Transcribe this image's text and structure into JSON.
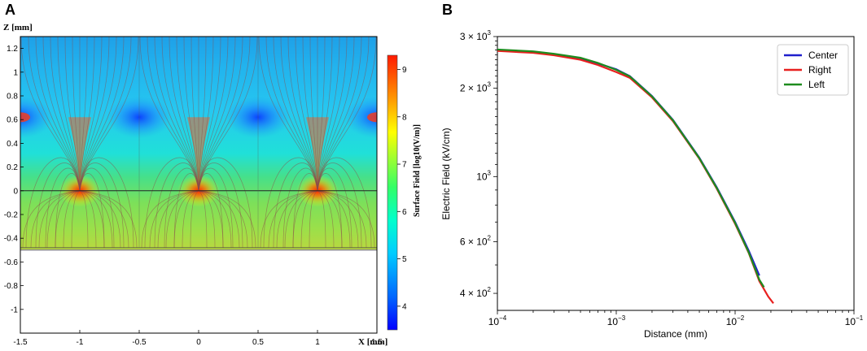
{
  "panels": {
    "a": {
      "label": "A",
      "title": "",
      "z_label": "Z [mm]",
      "x_label": "X [mm]",
      "x_ticks": [
        "-1.5",
        "-1",
        "-0.5",
        "0",
        "0.5",
        "1",
        "1.5"
      ],
      "z_ticks": [
        "1.2",
        "1",
        "0.8",
        "0.6",
        "0.4",
        "0.2",
        "0",
        "-0.2",
        "-0.4",
        "-0.6",
        "-0.8",
        "-1"
      ],
      "colorbar_label": "Surface Field [log10(V/m)]",
      "colorbar_ticks": [
        "4",
        "5",
        "6",
        "7",
        "8",
        "9"
      ]
    },
    "b": {
      "label": "B",
      "x_tick_labels": [
        {
          "base": "10",
          "exp": "−4"
        },
        {
          "base": "10",
          "exp": "−3"
        },
        {
          "base": "10",
          "exp": "−2"
        },
        {
          "base": "10",
          "exp": "−1"
        }
      ],
      "y_tick_labels": [
        {
          "base": "4 × 10",
          "exp": "2"
        },
        {
          "base": "6 × 10",
          "exp": "2"
        },
        {
          "base": "10",
          "exp": "3"
        },
        {
          "base": "2 × 10",
          "exp": "3"
        },
        {
          "base": "3 × 10",
          "exp": "3"
        }
      ]
    }
  },
  "chart_data": [
    {
      "type": "heatmap",
      "title": "",
      "xlabel": "X [mm]",
      "ylabel": "Z [mm]",
      "xlim": [
        -1.5,
        1.5
      ],
      "ylim": [
        -1.2,
        1.3
      ],
      "colorbar": {
        "label": "Surface Field [log10(V/m)]",
        "range": [
          3.5,
          9.3
        ],
        "ticks": [
          4,
          5,
          6,
          7,
          8,
          9
        ]
      },
      "point_sources_x": [
        -1,
        0,
        1
      ],
      "source_z": 0,
      "field_region_z": [
        -0.48,
        1.3
      ],
      "empty_region_z": [
        -1.2,
        -0.5
      ]
    },
    {
      "type": "line",
      "title": "",
      "xlabel": "Distance (mm)",
      "ylabel": "Electric Field (kV/cm)",
      "xscale": "log",
      "yscale": "log",
      "xlim": [
        0.0001,
        0.1
      ],
      "ylim": [
        350,
        3000
      ],
      "x_ticks": [
        0.0001,
        0.001,
        0.01,
        0.1
      ],
      "y_ticks": [
        400,
        600,
        1000,
        2000,
        3000
      ],
      "legend": "top-right",
      "series": [
        {
          "name": "Center",
          "color": "#1f1fcc",
          "x": [
            0.0001,
            0.0002,
            0.0003,
            0.0005,
            0.0007,
            0.001,
            0.0013,
            0.002,
            0.003,
            0.005,
            0.007,
            0.01,
            0.013,
            0.016
          ],
          "y": [
            2700,
            2660,
            2610,
            2530,
            2430,
            2320,
            2200,
            1880,
            1560,
            1160,
            920,
            700,
            560,
            460
          ]
        },
        {
          "name": "Right",
          "color": "#e8201f",
          "x": [
            0.0001,
            0.0002,
            0.0003,
            0.0005,
            0.0007,
            0.001,
            0.0013,
            0.002,
            0.003,
            0.005,
            0.007,
            0.01,
            0.013,
            0.016,
            0.019,
            0.021
          ],
          "y": [
            2680,
            2640,
            2590,
            2500,
            2400,
            2270,
            2170,
            1860,
            1545,
            1150,
            910,
            690,
            550,
            440,
            390,
            370
          ]
        },
        {
          "name": "Left",
          "color": "#1e8c1e",
          "x": [
            0.0001,
            0.0002,
            0.0003,
            0.0005,
            0.0007,
            0.001,
            0.0013,
            0.002,
            0.003,
            0.005,
            0.007,
            0.01,
            0.013,
            0.016,
            0.0175
          ],
          "y": [
            2710,
            2670,
            2620,
            2540,
            2440,
            2310,
            2195,
            1875,
            1555,
            1155,
            915,
            695,
            552,
            445,
            420
          ]
        }
      ]
    }
  ]
}
